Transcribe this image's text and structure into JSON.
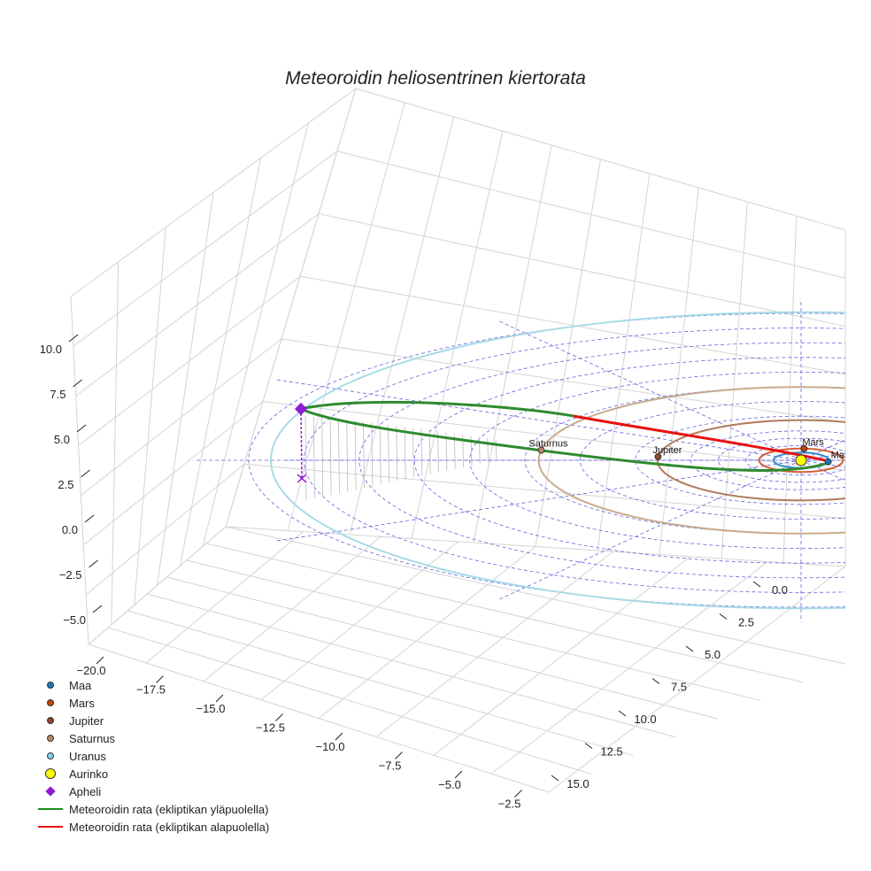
{
  "chart_data": {
    "type": "line",
    "title": "Meteoroidin heliosentrinen kiertorata",
    "axes": {
      "x": {
        "ticks": [
          "−20.0",
          "−17.5",
          "−15.0",
          "−12.5",
          "−10.0",
          "−7.5",
          "−5.0",
          "−2.5"
        ]
      },
      "y": {
        "ticks": [
          "0.0",
          "2.5",
          "5.0",
          "7.5",
          "10.0",
          "12.5",
          "15.0"
        ]
      },
      "z": {
        "ticks": [
          "10.0",
          "7.5",
          "5.0",
          "2.5",
          "0.0",
          "−2.5",
          "−5.0"
        ]
      }
    },
    "planets": [
      {
        "name": "Maa",
        "color": "#1f77b4",
        "orbit_color": "#2f8ad0",
        "orbit_radius_au": 1.0
      },
      {
        "name": "Mars",
        "color": "#c1440e",
        "orbit_color": "#d2603a",
        "orbit_radius_au": 1.52
      },
      {
        "name": "Jupiter",
        "color": "#8b4a2b",
        "orbit_color": "#b07a5a",
        "orbit_radius_au": 5.2
      },
      {
        "name": "Saturnus",
        "color": "#b5876a",
        "orbit_color": "#c8ab8c",
        "orbit_radius_au": 9.5
      },
      {
        "name": "Uranus",
        "color": "#87ceeb",
        "orbit_color": "#a8dbe6",
        "orbit_radius_au": 19.2
      }
    ],
    "sun": {
      "name": "Aurinko",
      "color": "#ffff00"
    },
    "aphelion": {
      "name": "Apheli",
      "color": "#8e1bd6"
    },
    "series": [
      {
        "name": "Meteoroidin rata (ekliptikan yläpuolella)",
        "color": "#2e8b2e"
      },
      {
        "name": "Meteoroidin rata (ekliptikan alapuolella)",
        "color": "#e81010"
      }
    ],
    "legend": [
      "Maa",
      "Mars",
      "Jupiter",
      "Saturnus",
      "Uranus",
      "Aurinko",
      "Apheli",
      "Meteoroidin rata (ekliptikan yläpuolella)",
      "Meteoroidin rata (ekliptikan alapuolella)"
    ]
  }
}
